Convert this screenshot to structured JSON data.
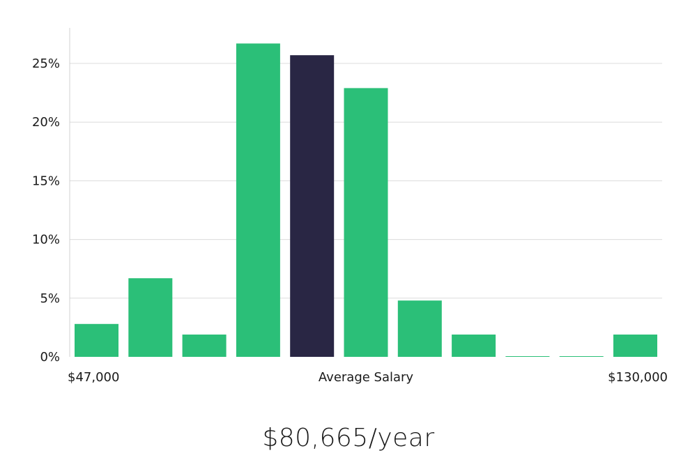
{
  "chart_data": {
    "type": "bar",
    "title": "",
    "xlabel": "Average Salary",
    "ylabel": "",
    "x_start_label": "$47,000",
    "x_end_label": "$130,000",
    "ylim": [
      0,
      28
    ],
    "yticks": [
      0,
      5,
      10,
      15,
      20,
      25
    ],
    "ytick_labels": [
      "0%",
      "5%",
      "10%",
      "15%",
      "20%",
      "25%"
    ],
    "grid": true,
    "values": [
      2.8,
      6.7,
      1.9,
      26.7,
      25.7,
      22.9,
      4.8,
      1.9,
      0.05,
      0.05,
      1.9
    ],
    "highlight_index": 4,
    "colors": {
      "bar": "#2bbf78",
      "highlight": "#292644",
      "grid": "#dcdcdc",
      "axis": "#d0d0d0"
    }
  },
  "salary_text": "$80,665/year"
}
